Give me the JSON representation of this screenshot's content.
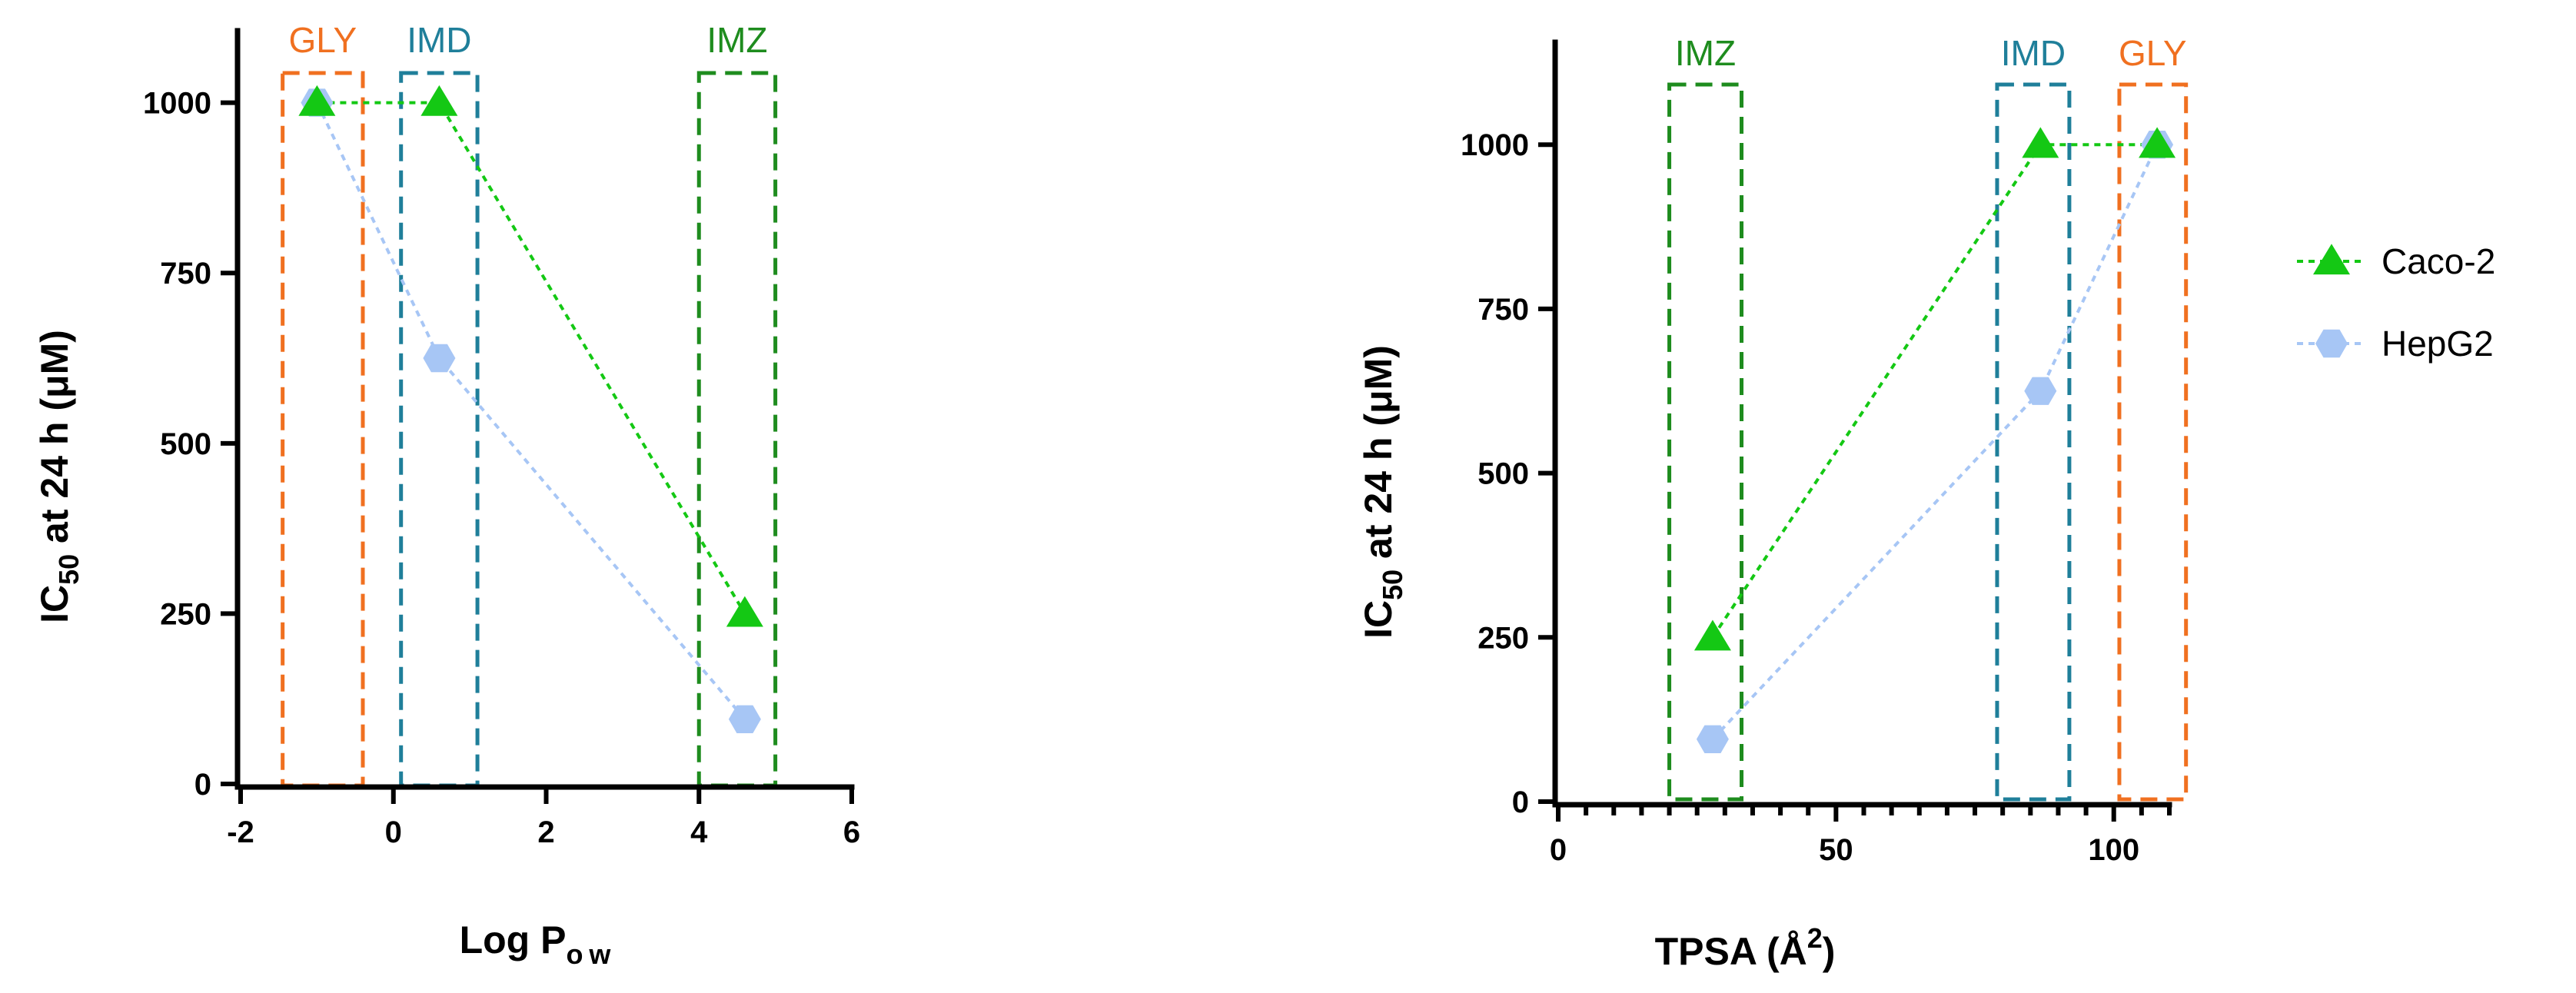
{
  "colors": {
    "caco2": "#14c814",
    "hepg2": "#a7c6f5",
    "gly": "#f07020",
    "imd": "#1f7f9a",
    "imz": "#1e8c1e"
  },
  "legend": [
    {
      "key": "caco2",
      "label": "Caco-2",
      "marker": "triangle"
    },
    {
      "key": "hepg2",
      "label": "HepG2",
      "marker": "hexagon"
    }
  ],
  "chart_data": [
    {
      "type": "line",
      "xlabel_main": "Log P",
      "xlabel_sub": "ow",
      "ylabel_main": "IC",
      "ylabel_sub": "50",
      "ylabel_rest": " at 24 h (μM)",
      "xlim": [
        -2,
        6
      ],
      "ylim": [
        0,
        1100
      ],
      "xticks": [
        -2,
        0,
        2,
        4,
        6
      ],
      "xtick_labels": [
        "-2",
        "0",
        "2",
        "4",
        "6"
      ],
      "yticks": [
        0,
        250,
        500,
        750,
        1000
      ],
      "ytick_labels": [
        "0",
        "250",
        "500",
        "750",
        "1000"
      ],
      "x": [
        -1.0,
        0.6,
        4.6
      ],
      "series": [
        {
          "name": "Caco-2",
          "values": [
            1000,
            1000,
            250
          ]
        },
        {
          "name": "HepG2",
          "values": [
            1000,
            625,
            95
          ]
        }
      ],
      "boxes": [
        {
          "label": "GLY",
          "color_key": "gly",
          "x_range": [
            -1.45,
            -0.4
          ]
        },
        {
          "label": "IMD",
          "color_key": "imd",
          "x_range": [
            0.1,
            1.1
          ]
        },
        {
          "label": "IMZ",
          "color_key": "imz",
          "x_range": [
            4.0,
            5.0
          ]
        }
      ]
    },
    {
      "type": "line",
      "xlabel_main": "TPSA (Å",
      "xlabel_sup": "2",
      "xlabel_end": ")",
      "ylabel_main": "IC",
      "ylabel_sub": "50",
      "ylabel_rest": " at 24 h (μM)",
      "xlim": [
        0,
        110
      ],
      "ylim": [
        0,
        1150
      ],
      "xticks": [
        0,
        50,
        100
      ],
      "xtick_labels": [
        "0",
        "50",
        "100"
      ],
      "minor_xtick_step": 5,
      "yticks": [
        0,
        250,
        500,
        750,
        1000
      ],
      "ytick_labels": [
        "0",
        "250",
        "500",
        "750",
        "1000"
      ],
      "x": [
        27.8,
        86.8,
        107.8
      ],
      "series": [
        {
          "name": "Caco-2",
          "values": [
            250,
            1000,
            1000
          ]
        },
        {
          "name": "HepG2",
          "values": [
            95,
            625,
            1000
          ]
        }
      ],
      "boxes": [
        {
          "label": "IMZ",
          "color_key": "imz",
          "x_range": [
            20,
            33
          ]
        },
        {
          "label": "IMD",
          "color_key": "imd",
          "x_range": [
            79,
            92
          ]
        },
        {
          "label": "GLY",
          "color_key": "gly",
          "x_range": [
            101,
            113
          ]
        }
      ]
    }
  ]
}
